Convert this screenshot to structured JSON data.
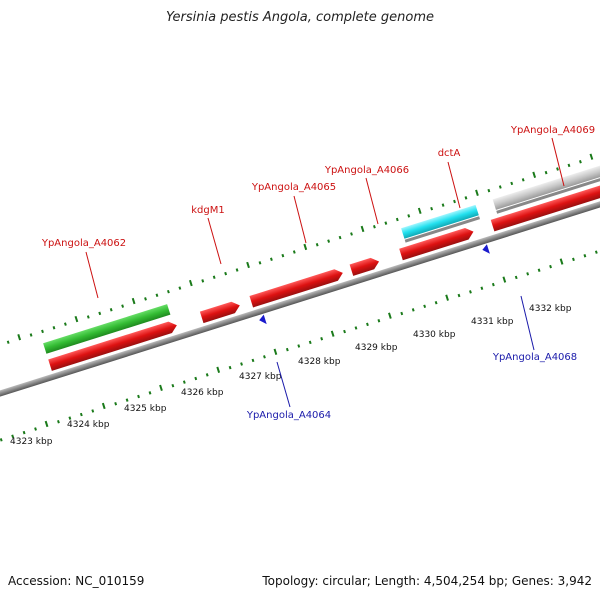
{
  "title": "Yersinia pestis Angola, complete genome",
  "footer": {
    "accession": "Accession: NC_010159",
    "summary": "Topology: circular; Length: 4,504,254 bp; Genes: 3,942"
  },
  "colors": {
    "forward_gene": "#dd1111",
    "reverse_gene": "#1a1acc",
    "highlight_green": "#33bb33",
    "highlight_cyan": "#22e0ee",
    "highlight_gray": "#c8c8c8",
    "tick": "#1a7a1a",
    "axis": "#888888",
    "forward_label": "#cc1111",
    "reverse_label": "#1a1aaa"
  },
  "scale": {
    "unit": "kbp",
    "labels": [
      "4323 kbp",
      "4324 kbp",
      "4325 kbp",
      "4326 kbp",
      "4327 kbp",
      "4328 kbp",
      "4329 kbp",
      "4330 kbp",
      "4331 kbp",
      "4332 kbp"
    ]
  },
  "forward_labels": [
    "YpAngola_A4062",
    "kdgM1",
    "YpAngola_A4065",
    "YpAngola_A4066",
    "dctA",
    "YpAngola_A4069"
  ],
  "reverse_labels": [
    "YpAngola_A4064",
    "YpAngola_A4068"
  ]
}
